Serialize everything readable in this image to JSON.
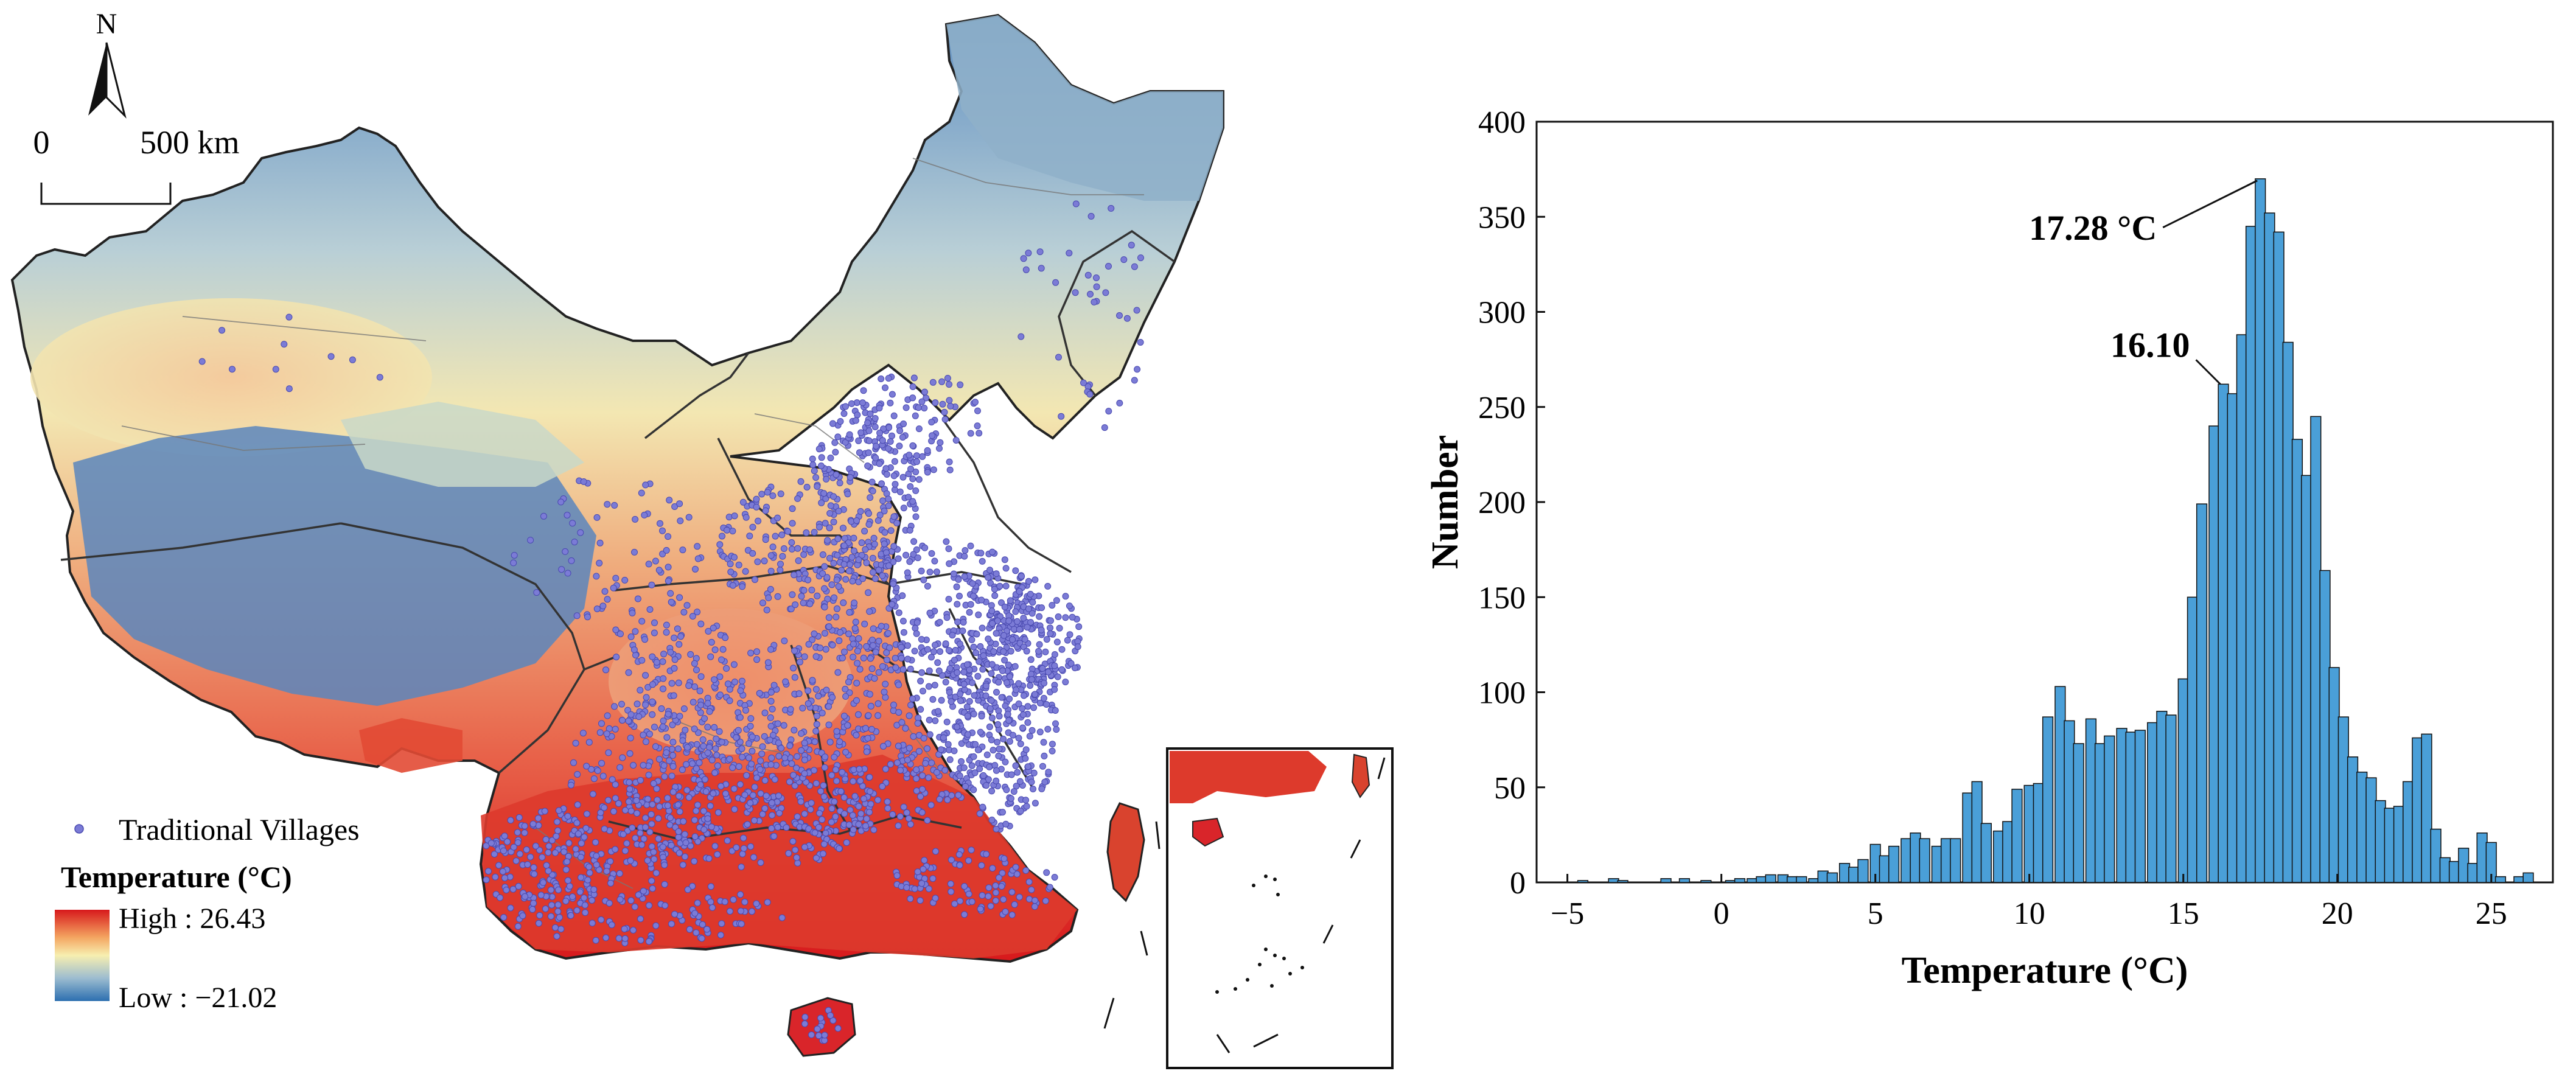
{
  "map": {
    "north_label": "N",
    "scale_start": "0",
    "scale_end": "500 km",
    "legend_points_label": "Traditional Villages",
    "legend_title": "Temperature (°C)",
    "legend_high": "High : 26.43",
    "legend_low": "Low : −21.02",
    "colors": {
      "high": "#d7191c",
      "mid": "#f7e9a0",
      "low": "#2c6fb0",
      "villages": "#7b7bd6",
      "boundary": "#222222"
    }
  },
  "chart_data": {
    "type": "bar",
    "xlabel": "Temperature (°C)",
    "ylabel": "Number",
    "xlim": [
      -6,
      27
    ],
    "ylim": [
      0,
      400
    ],
    "xticks": [
      -5,
      0,
      5,
      10,
      15,
      20,
      25
    ],
    "yticks": [
      0,
      50,
      100,
      150,
      200,
      250,
      300,
      350,
      400
    ],
    "bin_width": 0.33,
    "bar_color": "#4a9fd8",
    "bins": [
      {
        "x": -4.5,
        "y": 1
      },
      {
        "x": -3.5,
        "y": 2
      },
      {
        "x": -3.2,
        "y": 1
      },
      {
        "x": -1.8,
        "y": 2
      },
      {
        "x": -1.2,
        "y": 2
      },
      {
        "x": -0.5,
        "y": 1
      },
      {
        "x": 0.3,
        "y": 1
      },
      {
        "x": 0.6,
        "y": 2
      },
      {
        "x": 1.0,
        "y": 2
      },
      {
        "x": 1.3,
        "y": 3
      },
      {
        "x": 1.6,
        "y": 4
      },
      {
        "x": 2.0,
        "y": 4
      },
      {
        "x": 2.3,
        "y": 3
      },
      {
        "x": 2.6,
        "y": 3
      },
      {
        "x": 3.0,
        "y": 2
      },
      {
        "x": 3.3,
        "y": 6
      },
      {
        "x": 3.6,
        "y": 5
      },
      {
        "x": 4.0,
        "y": 10
      },
      {
        "x": 4.3,
        "y": 8
      },
      {
        "x": 4.6,
        "y": 12
      },
      {
        "x": 5.0,
        "y": 20
      },
      {
        "x": 5.3,
        "y": 14
      },
      {
        "x": 5.6,
        "y": 19
      },
      {
        "x": 6.0,
        "y": 23
      },
      {
        "x": 6.3,
        "y": 26
      },
      {
        "x": 6.6,
        "y": 23
      },
      {
        "x": 7.0,
        "y": 19
      },
      {
        "x": 7.3,
        "y": 23
      },
      {
        "x": 7.6,
        "y": 23
      },
      {
        "x": 8.0,
        "y": 47
      },
      {
        "x": 8.3,
        "y": 53
      },
      {
        "x": 8.6,
        "y": 31
      },
      {
        "x": 9.0,
        "y": 27
      },
      {
        "x": 9.3,
        "y": 32
      },
      {
        "x": 9.6,
        "y": 49
      },
      {
        "x": 10.0,
        "y": 51
      },
      {
        "x": 10.3,
        "y": 52
      },
      {
        "x": 10.6,
        "y": 87
      },
      {
        "x": 11.0,
        "y": 103
      },
      {
        "x": 11.3,
        "y": 85
      },
      {
        "x": 11.6,
        "y": 73
      },
      {
        "x": 12.0,
        "y": 86
      },
      {
        "x": 12.3,
        "y": 73
      },
      {
        "x": 12.6,
        "y": 77
      },
      {
        "x": 13.0,
        "y": 81
      },
      {
        "x": 13.3,
        "y": 79
      },
      {
        "x": 13.6,
        "y": 80
      },
      {
        "x": 14.0,
        "y": 84
      },
      {
        "x": 14.3,
        "y": 90
      },
      {
        "x": 14.6,
        "y": 88
      },
      {
        "x": 15.0,
        "y": 107
      },
      {
        "x": 15.3,
        "y": 150
      },
      {
        "x": 15.6,
        "y": 199
      },
      {
        "x": 16.0,
        "y": 240
      },
      {
        "x": 16.3,
        "y": 262
      },
      {
        "x": 16.6,
        "y": 257
      },
      {
        "x": 16.9,
        "y": 288
      },
      {
        "x": 17.2,
        "y": 345
      },
      {
        "x": 17.5,
        "y": 370
      },
      {
        "x": 17.8,
        "y": 352
      },
      {
        "x": 18.1,
        "y": 342
      },
      {
        "x": 18.4,
        "y": 284
      },
      {
        "x": 18.7,
        "y": 233
      },
      {
        "x": 19.0,
        "y": 214
      },
      {
        "x": 19.3,
        "y": 245
      },
      {
        "x": 19.6,
        "y": 164
      },
      {
        "x": 19.9,
        "y": 113
      },
      {
        "x": 20.2,
        "y": 87
      },
      {
        "x": 20.5,
        "y": 66
      },
      {
        "x": 20.8,
        "y": 58
      },
      {
        "x": 21.1,
        "y": 55
      },
      {
        "x": 21.4,
        "y": 43
      },
      {
        "x": 21.7,
        "y": 39
      },
      {
        "x": 22.0,
        "y": 40
      },
      {
        "x": 22.3,
        "y": 53
      },
      {
        "x": 22.6,
        "y": 76
      },
      {
        "x": 22.9,
        "y": 78
      },
      {
        "x": 23.2,
        "y": 28
      },
      {
        "x": 23.5,
        "y": 13
      },
      {
        "x": 23.8,
        "y": 11
      },
      {
        "x": 24.1,
        "y": 18
      },
      {
        "x": 24.4,
        "y": 10
      },
      {
        "x": 24.7,
        "y": 26
      },
      {
        "x": 25.0,
        "y": 21
      },
      {
        "x": 25.3,
        "y": 3
      },
      {
        "x": 25.9,
        "y": 3
      },
      {
        "x": 26.2,
        "y": 5
      }
    ],
    "annotations": [
      {
        "text": "17.28 °C",
        "x": 17.5,
        "y": 370
      },
      {
        "text": "16.10",
        "x": 16.3,
        "y": 262
      }
    ]
  }
}
